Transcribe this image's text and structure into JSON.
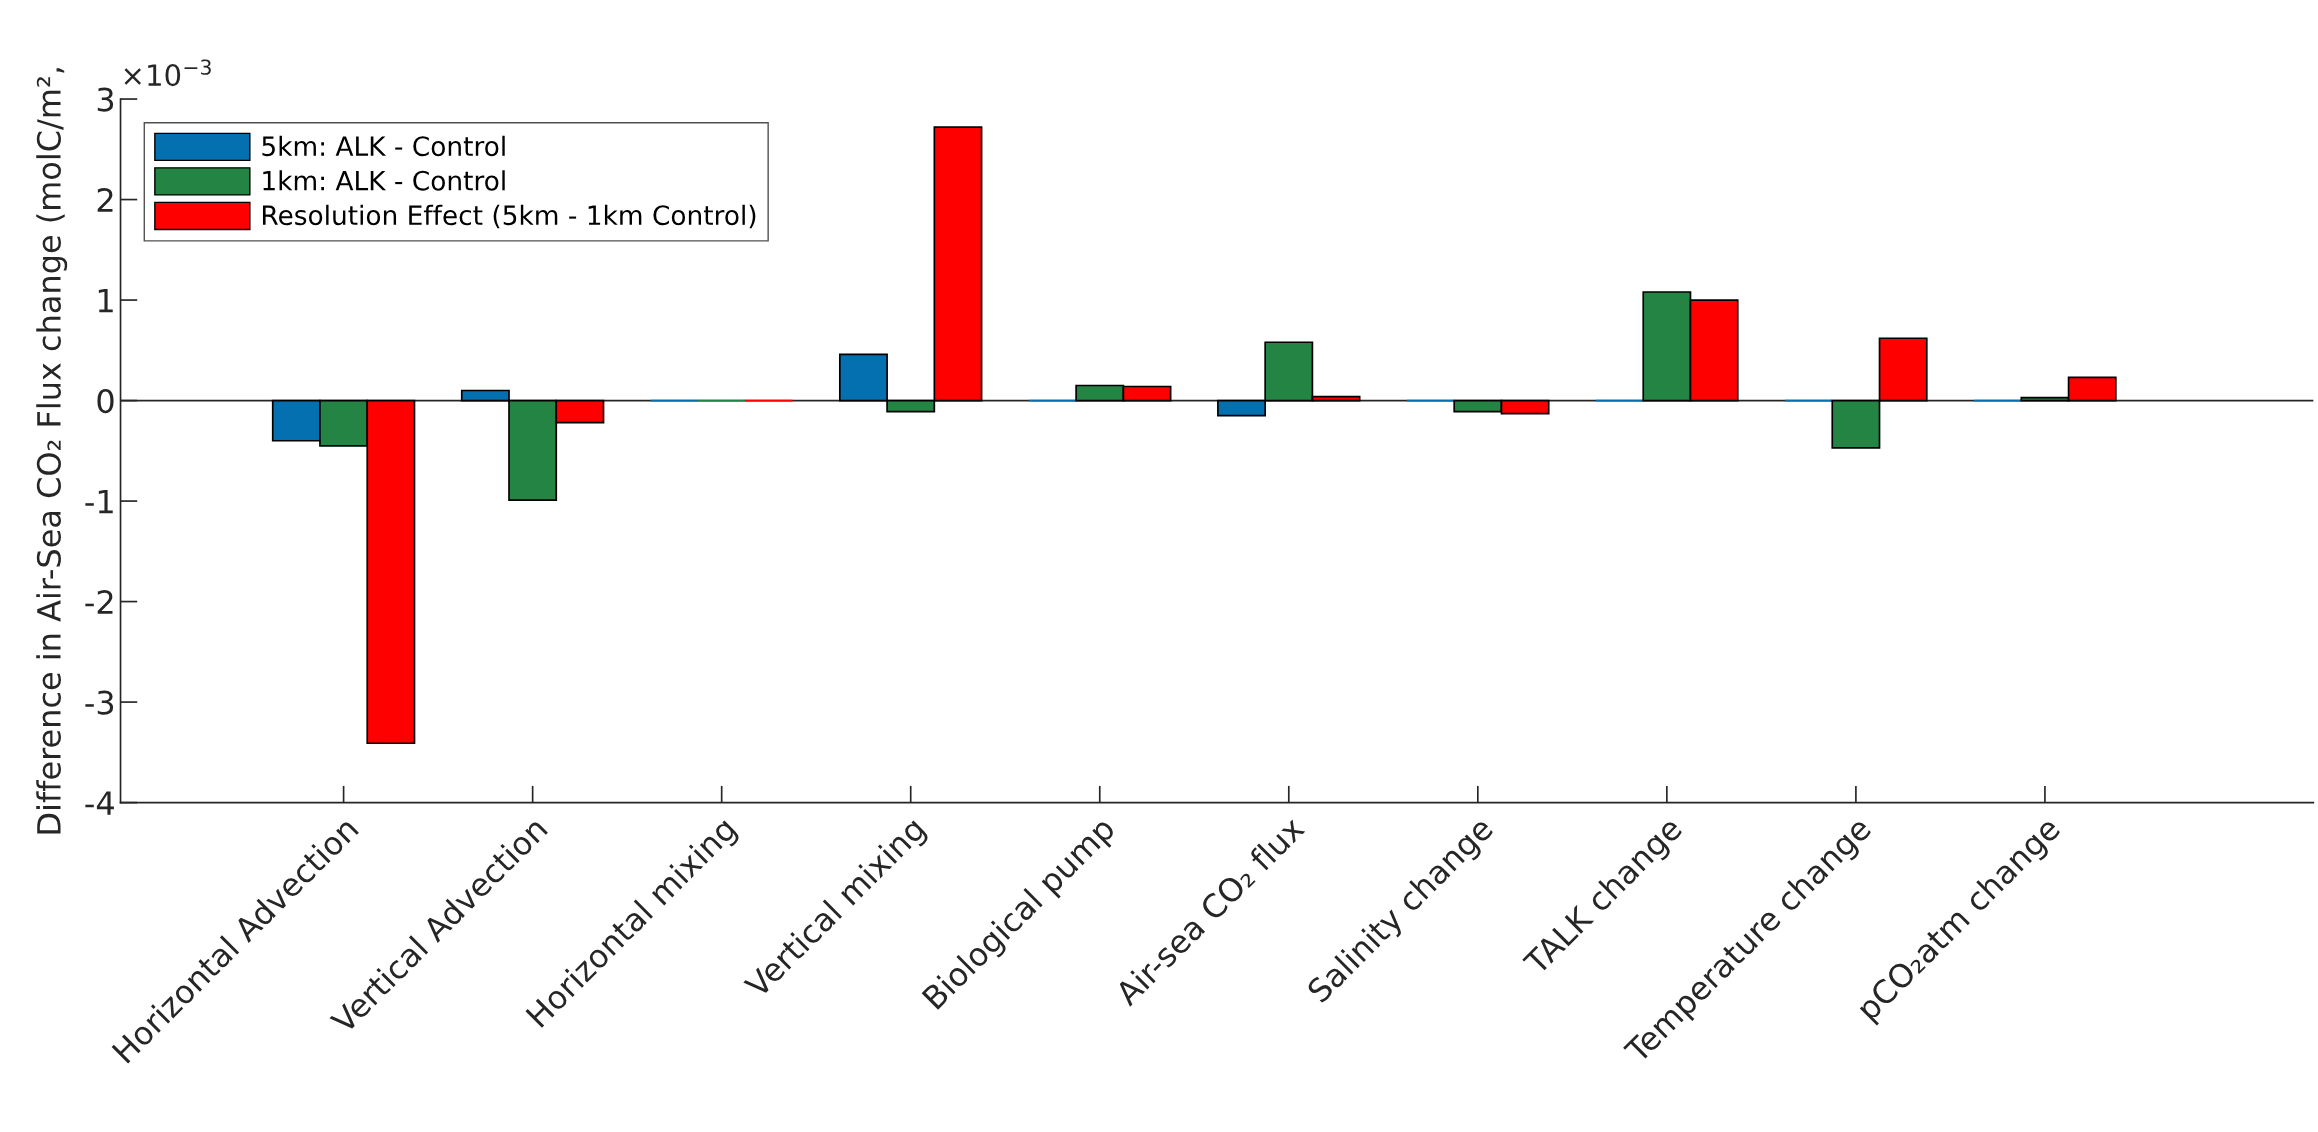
{
  "chart_data": {
    "type": "bar",
    "ylabel": "Difference in Air-Sea CO₂ Flux change (molC/m²,",
    "categories": [
      "Horizontal Advection",
      "Vertical Advection",
      "Horizontal mixing",
      "Vertical mixing",
      "Biological pump",
      "Air-sea CO₂ flux",
      "Salinity change",
      "TALK change",
      "Temperature change",
      "pCO₂atm change"
    ],
    "series": [
      {
        "name": "5km: ALK - Control",
        "color": "#0570b0",
        "values": [
          -0.4,
          0.1,
          0,
          0.46,
          0,
          -0.15,
          0,
          0,
          0,
          0
        ]
      },
      {
        "name": "1km: ALK - Control",
        "color": "#238443",
        "values": [
          -0.45,
          -0.99,
          0,
          -0.11,
          0.15,
          0.58,
          -0.11,
          1.08,
          -0.47,
          0.03
        ]
      },
      {
        "name": "Resolution Effect (5km - 1km Control)",
        "color": "#ff0000",
        "values": [
          -3.41,
          -0.22,
          0,
          2.72,
          0.14,
          0.04,
          -0.13,
          1.0,
          0.62,
          0.23
        ]
      }
    ],
    "ylim": [
      -4,
      3
    ],
    "yticks": [
      -4,
      -3,
      -2,
      -1,
      0,
      1,
      2,
      3
    ],
    "annotations": [
      "×10$^{−3}$"
    ],
    "ref_lines": [
      {
        "axis": "y",
        "value": 0,
        "color": "#262626"
      }
    ],
    "legend": "top left",
    "grid": false
  }
}
